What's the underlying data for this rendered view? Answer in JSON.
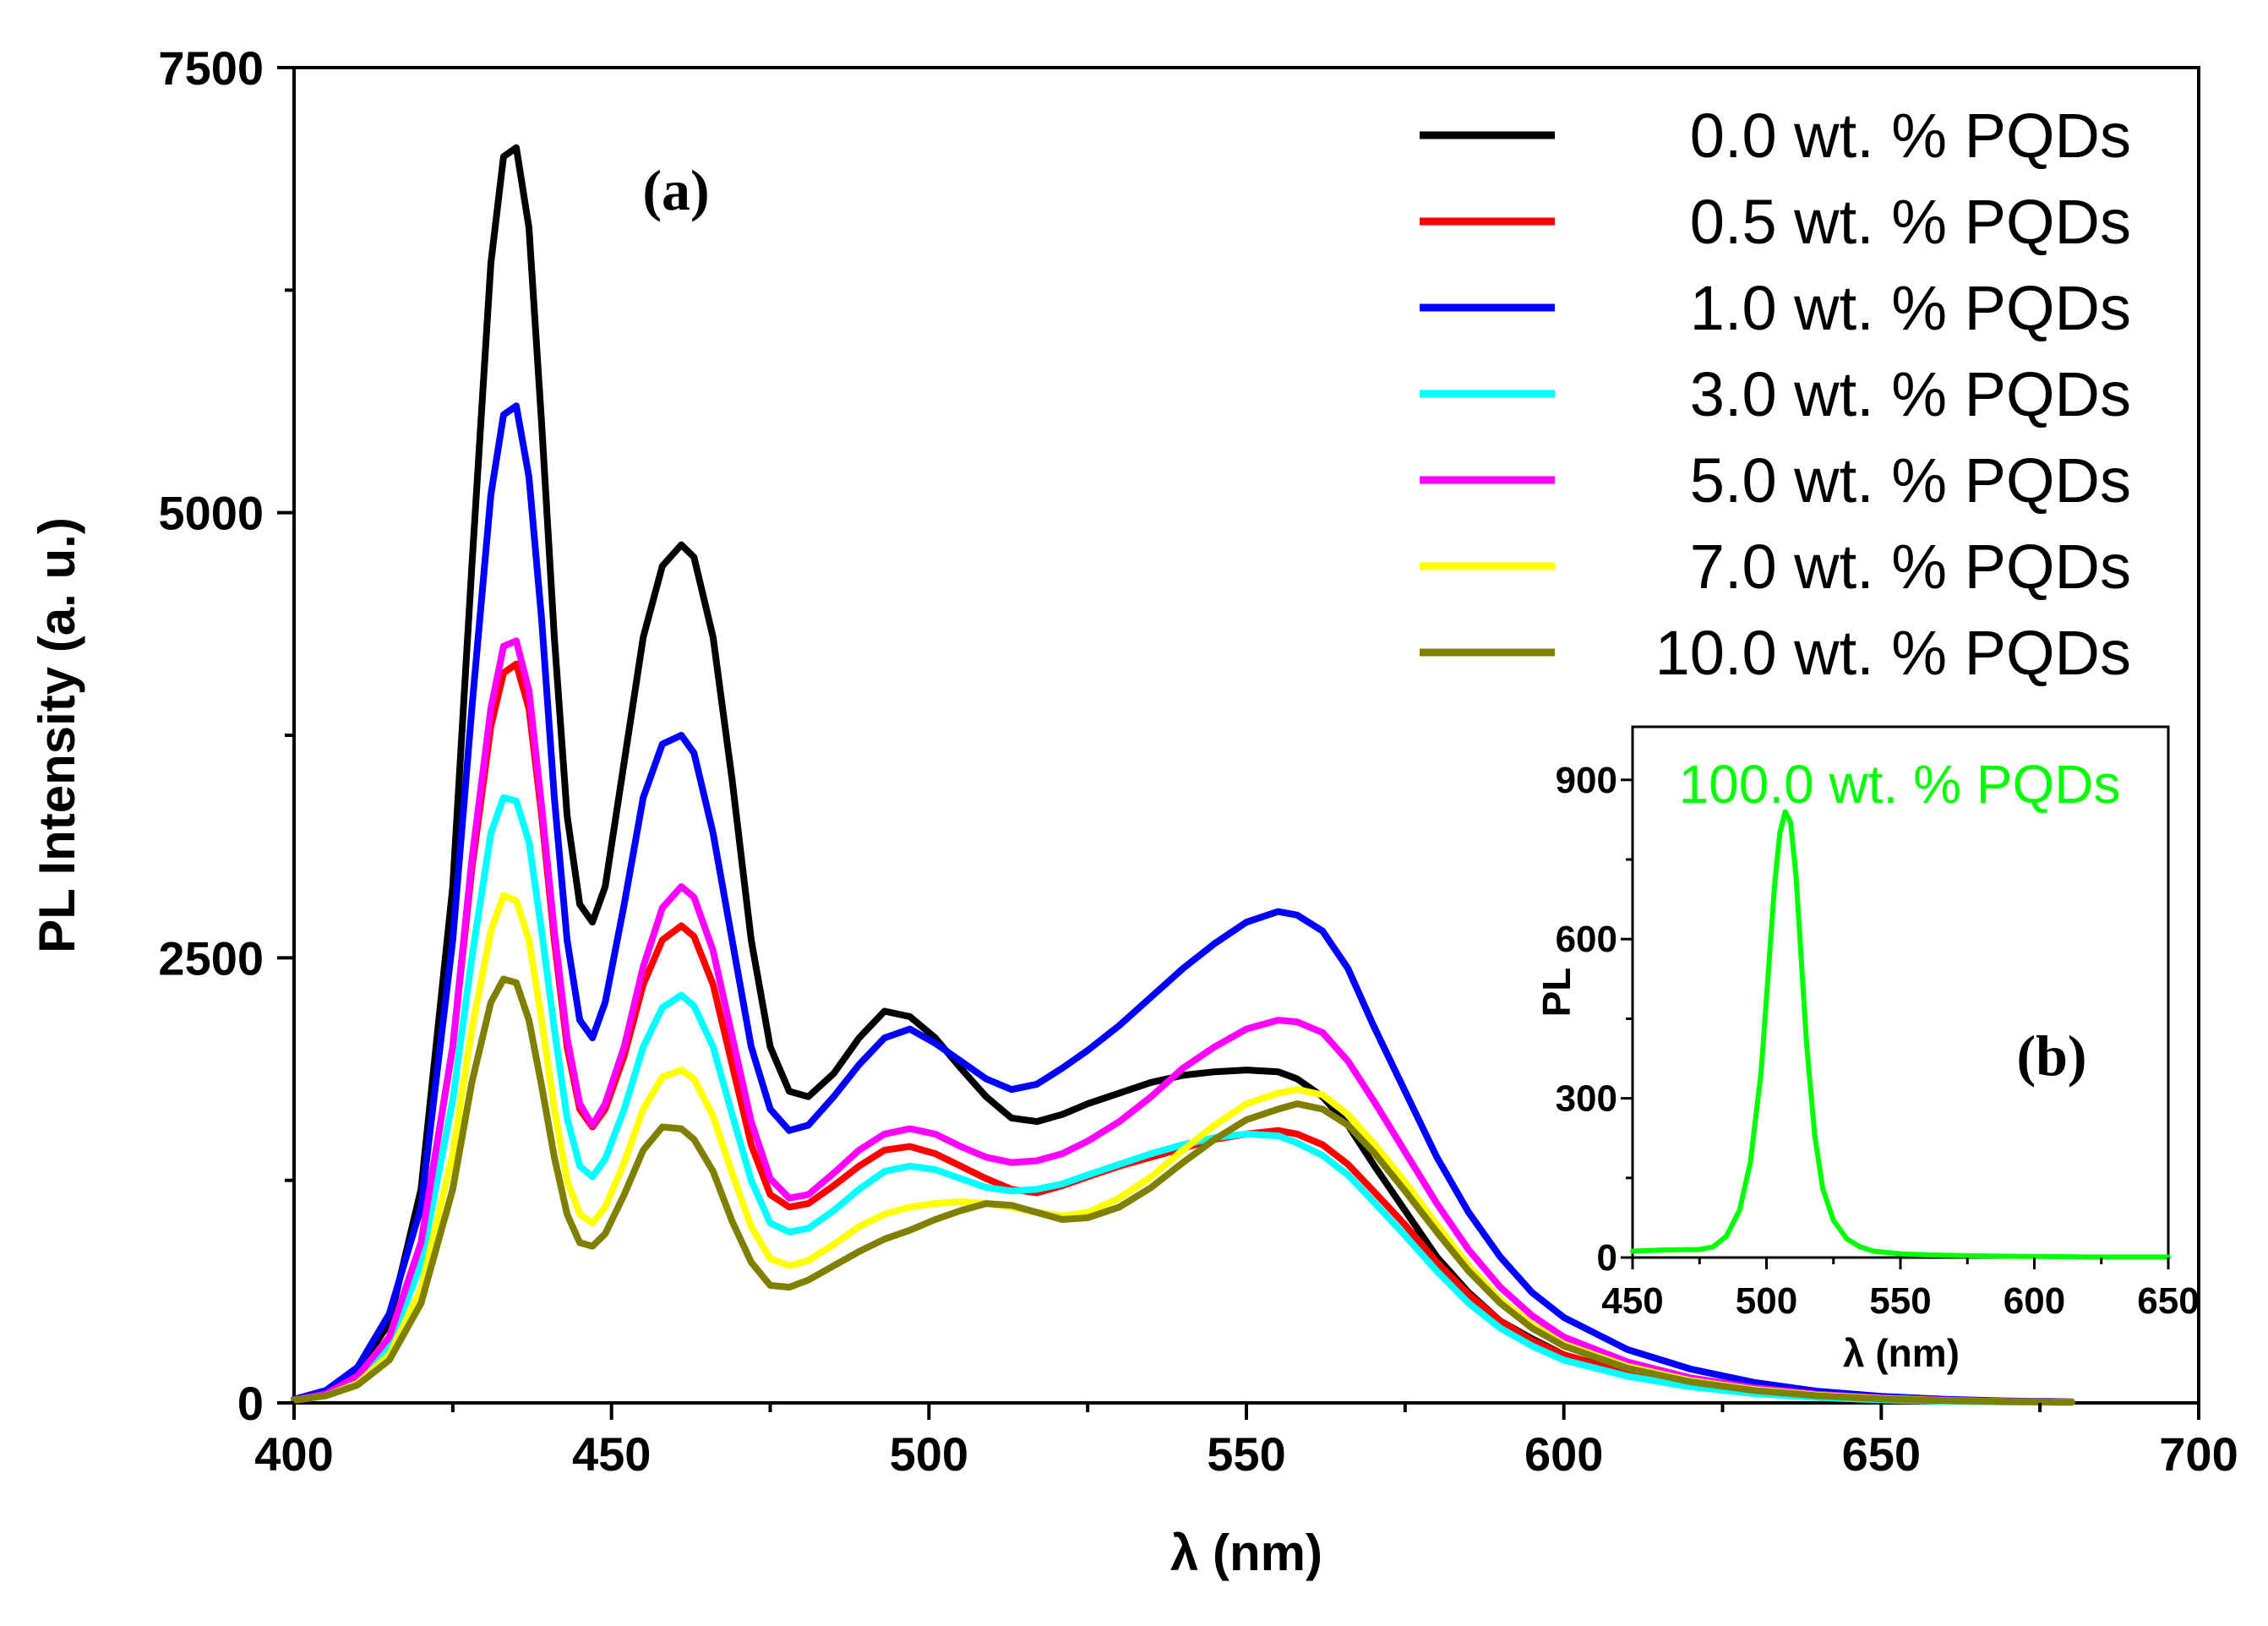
{
  "chart_data": [
    {
      "type": "line",
      "panel_label": "(a)",
      "xlabel": "λ (nm)",
      "ylabel": "PL Intensity (a. u.)",
      "xlim": [
        400,
        700
      ],
      "ylim": [
        0,
        7500
      ],
      "x_ticks": [
        "400",
        "450",
        "500",
        "550",
        "600",
        "650",
        "700"
      ],
      "y_ticks": [
        "0",
        "2500",
        "5000",
        "7500"
      ],
      "legend_position": "top-right",
      "series": [
        {
          "name": "0.0 wt. % PQDs",
          "color": "#000000",
          "x": [
            400,
            405,
            410,
            415,
            420,
            425,
            428,
            431,
            433,
            435,
            437,
            439,
            441,
            443,
            445,
            447,
            449,
            452,
            455,
            458,
            461,
            463,
            466,
            469,
            472,
            475,
            478,
            481,
            485,
            489,
            493,
            497,
            501,
            505,
            509,
            513,
            517,
            521,
            525,
            530,
            535,
            540,
            545,
            550,
            555,
            558,
            562,
            566,
            570,
            575,
            580,
            585,
            590,
            595,
            600,
            610,
            620,
            630,
            640,
            650,
            660,
            670,
            680
          ],
          "y": [
            20,
            60,
            180,
            450,
            1200,
            2900,
            4700,
            6400,
            7000,
            7050,
            6600,
            5500,
            4300,
            3300,
            2800,
            2700,
            2900,
            3600,
            4300,
            4700,
            4820,
            4750,
            4300,
            3500,
            2600,
            2000,
            1750,
            1720,
            1850,
            2050,
            2200,
            2170,
            2050,
            1880,
            1720,
            1600,
            1580,
            1620,
            1680,
            1740,
            1800,
            1840,
            1860,
            1870,
            1860,
            1820,
            1720,
            1560,
            1340,
            1080,
            820,
            620,
            460,
            360,
            270,
            170,
            105,
            65,
            38,
            22,
            12,
            7,
            4
          ]
        },
        {
          "name": "0.5 wt. % PQDs",
          "color": "#ff0000",
          "x": [
            400,
            405,
            410,
            415,
            420,
            425,
            428,
            431,
            433,
            435,
            437,
            439,
            441,
            443,
            445,
            447,
            449,
            452,
            455,
            458,
            461,
            463,
            466,
            469,
            472,
            475,
            478,
            481,
            485,
            489,
            493,
            497,
            501,
            505,
            509,
            513,
            517,
            521,
            525,
            530,
            535,
            540,
            545,
            550,
            555,
            558,
            562,
            566,
            570,
            575,
            580,
            585,
            590,
            595,
            600,
            610,
            620,
            630,
            640,
            650,
            660,
            670,
            680
          ],
          "y": [
            15,
            50,
            150,
            370,
            900,
            2000,
            3000,
            3800,
            4100,
            4150,
            3900,
            3300,
            2600,
            2000,
            1650,
            1550,
            1650,
            1950,
            2350,
            2600,
            2680,
            2620,
            2350,
            1900,
            1450,
            1170,
            1100,
            1120,
            1220,
            1330,
            1420,
            1440,
            1400,
            1330,
            1260,
            1200,
            1180,
            1220,
            1270,
            1330,
            1380,
            1430,
            1480,
            1510,
            1530,
            1510,
            1450,
            1340,
            1190,
            1000,
            790,
            610,
            460,
            350,
            270,
            165,
            100,
            60,
            35,
            20,
            11,
            6,
            3
          ]
        },
        {
          "name": "1.0 wt. % PQDs",
          "color": "#0000ff",
          "x": [
            400,
            405,
            410,
            415,
            420,
            425,
            428,
            431,
            433,
            435,
            437,
            439,
            441,
            443,
            445,
            447,
            449,
            452,
            455,
            458,
            461,
            463,
            466,
            469,
            472,
            475,
            478,
            481,
            485,
            489,
            493,
            497,
            501,
            505,
            509,
            513,
            517,
            521,
            525,
            530,
            535,
            540,
            545,
            550,
            555,
            558,
            562,
            566,
            570,
            575,
            580,
            585,
            590,
            595,
            600,
            610,
            620,
            630,
            640,
            650,
            660,
            670,
            680
          ],
          "y": [
            20,
            70,
            200,
            500,
            1100,
            2600,
            3900,
            5100,
            5550,
            5600,
            5200,
            4400,
            3400,
            2600,
            2150,
            2050,
            2250,
            2800,
            3400,
            3700,
            3750,
            3650,
            3200,
            2600,
            2000,
            1650,
            1530,
            1560,
            1720,
            1900,
            2050,
            2100,
            2020,
            1920,
            1820,
            1760,
            1790,
            1880,
            1980,
            2120,
            2280,
            2440,
            2580,
            2700,
            2760,
            2740,
            2650,
            2440,
            2120,
            1750,
            1380,
            1070,
            820,
            620,
            480,
            300,
            190,
            115,
            65,
            37,
            20,
            11,
            6
          ]
        },
        {
          "name": "3.0 wt. % PQDs",
          "color": "#00ffff",
          "x": [
            400,
            405,
            410,
            415,
            420,
            425,
            428,
            431,
            433,
            435,
            437,
            439,
            441,
            443,
            445,
            447,
            449,
            452,
            455,
            458,
            461,
            463,
            466,
            469,
            472,
            475,
            478,
            481,
            485,
            489,
            493,
            497,
            501,
            505,
            509,
            513,
            517,
            521,
            525,
            530,
            535,
            540,
            545,
            550,
            555,
            558,
            562,
            566,
            570,
            575,
            580,
            585,
            590,
            595,
            600,
            610,
            620,
            630,
            640,
            650,
            660,
            670,
            680
          ],
          "y": [
            15,
            45,
            130,
            320,
            780,
            1700,
            2500,
            3200,
            3400,
            3380,
            3150,
            2650,
            2100,
            1600,
            1330,
            1270,
            1370,
            1650,
            2000,
            2220,
            2290,
            2230,
            2000,
            1620,
            1250,
            1010,
            960,
            980,
            1080,
            1200,
            1300,
            1330,
            1310,
            1260,
            1210,
            1190,
            1200,
            1230,
            1280,
            1340,
            1400,
            1450,
            1490,
            1510,
            1500,
            1460,
            1390,
            1280,
            1130,
            940,
            740,
            560,
            420,
            320,
            240,
            150,
            90,
            52,
            30,
            17,
            9,
            5,
            3
          ]
        },
        {
          "name": "5.0 wt. % PQDs",
          "color": "#ff00ff",
          "x": [
            400,
            405,
            410,
            415,
            420,
            425,
            428,
            431,
            433,
            435,
            437,
            439,
            441,
            443,
            445,
            447,
            449,
            452,
            455,
            458,
            461,
            463,
            466,
            469,
            472,
            475,
            478,
            481,
            485,
            489,
            493,
            497,
            501,
            505,
            509,
            513,
            517,
            521,
            525,
            530,
            535,
            540,
            545,
            550,
            555,
            558,
            562,
            566,
            570,
            575,
            580,
            585,
            590,
            595,
            600,
            610,
            620,
            630,
            640,
            650,
            660,
            670,
            680
          ],
          "y": [
            15,
            50,
            150,
            370,
            900,
            2000,
            3050,
            3900,
            4250,
            4280,
            4000,
            3350,
            2650,
            2050,
            1680,
            1560,
            1680,
            2000,
            2450,
            2780,
            2900,
            2840,
            2540,
            2060,
            1580,
            1260,
            1150,
            1170,
            1290,
            1420,
            1510,
            1540,
            1510,
            1440,
            1380,
            1350,
            1360,
            1400,
            1470,
            1580,
            1720,
            1880,
            2000,
            2100,
            2150,
            2140,
            2080,
            1920,
            1700,
            1410,
            1120,
            860,
            650,
            490,
            370,
            230,
            140,
            85,
            48,
            27,
            15,
            8,
            4
          ]
        },
        {
          "name": "7.0 wt. % PQDs",
          "color": "#ffff00",
          "x": [
            400,
            405,
            410,
            415,
            420,
            425,
            428,
            431,
            433,
            435,
            437,
            439,
            441,
            443,
            445,
            447,
            449,
            452,
            455,
            458,
            461,
            463,
            466,
            469,
            472,
            475,
            478,
            481,
            485,
            489,
            493,
            497,
            501,
            505,
            509,
            513,
            517,
            521,
            525,
            530,
            535,
            540,
            545,
            550,
            555,
            558,
            562,
            566,
            570,
            575,
            580,
            585,
            590,
            595,
            600,
            610,
            620,
            630,
            640,
            650,
            660,
            670,
            680
          ],
          "y": [
            15,
            40,
            110,
            270,
            640,
            1400,
            2100,
            2650,
            2850,
            2820,
            2600,
            2150,
            1650,
            1250,
            1060,
            1010,
            1100,
            1350,
            1650,
            1830,
            1870,
            1820,
            1610,
            1290,
            990,
            810,
            770,
            800,
            890,
            990,
            1060,
            1100,
            1120,
            1130,
            1120,
            1100,
            1070,
            1050,
            1070,
            1150,
            1270,
            1420,
            1560,
            1680,
            1740,
            1760,
            1730,
            1620,
            1460,
            1240,
            1000,
            770,
            580,
            440,
            330,
            205,
            125,
            75,
            43,
            25,
            14,
            7,
            4
          ]
        },
        {
          "name": "10.0 wt. % PQDs",
          "color": "#808000",
          "x": [
            400,
            405,
            410,
            415,
            420,
            425,
            428,
            431,
            433,
            435,
            437,
            439,
            441,
            443,
            445,
            447,
            449,
            452,
            455,
            458,
            461,
            463,
            466,
            469,
            472,
            475,
            478,
            481,
            485,
            489,
            493,
            497,
            501,
            505,
            509,
            513,
            517,
            521,
            525,
            530,
            535,
            540,
            545,
            550,
            555,
            558,
            562,
            566,
            570,
            575,
            580,
            585,
            590,
            595,
            600,
            610,
            620,
            630,
            640,
            650,
            660,
            670,
            680
          ],
          "y": [
            15,
            40,
            100,
            240,
            560,
            1200,
            1800,
            2250,
            2380,
            2360,
            2150,
            1780,
            1380,
            1060,
            900,
            880,
            950,
            1170,
            1420,
            1550,
            1540,
            1480,
            1300,
            1020,
            790,
            660,
            650,
            690,
            770,
            850,
            920,
            970,
            1030,
            1080,
            1120,
            1110,
            1070,
            1030,
            1040,
            1100,
            1210,
            1350,
            1480,
            1590,
            1650,
            1680,
            1650,
            1560,
            1410,
            1190,
            960,
            740,
            560,
            420,
            320,
            195,
            118,
            70,
            40,
            23,
            13,
            7,
            4
          ]
        }
      ]
    },
    {
      "type": "line",
      "panel_label": "(b)",
      "xlabel": "λ (nm)",
      "ylabel": "PL",
      "xlim": [
        450,
        650
      ],
      "ylim": [
        0,
        1000
      ],
      "x_ticks": [
        "450",
        "500",
        "550",
        "600",
        "650"
      ],
      "y_ticks": [
        "0",
        "300",
        "600",
        "900"
      ],
      "legend_position": "top",
      "series": [
        {
          "name": "100.0 wt. % PQDs",
          "color": "#00ff00",
          "x": [
            450,
            460,
            470,
            475,
            480,
            485,
            490,
            494,
            498,
            501,
            503,
            505,
            507,
            509,
            511,
            513,
            515,
            518,
            521,
            525,
            530,
            535,
            540,
            550,
            560,
            580,
            600,
            620,
            650
          ],
          "y": [
            12,
            14,
            15,
            15,
            20,
            40,
            90,
            180,
            350,
            560,
            700,
            800,
            840,
            820,
            720,
            560,
            400,
            230,
            130,
            70,
            35,
            20,
            12,
            7,
            5,
            3,
            2,
            1,
            1
          ]
        }
      ]
    }
  ]
}
